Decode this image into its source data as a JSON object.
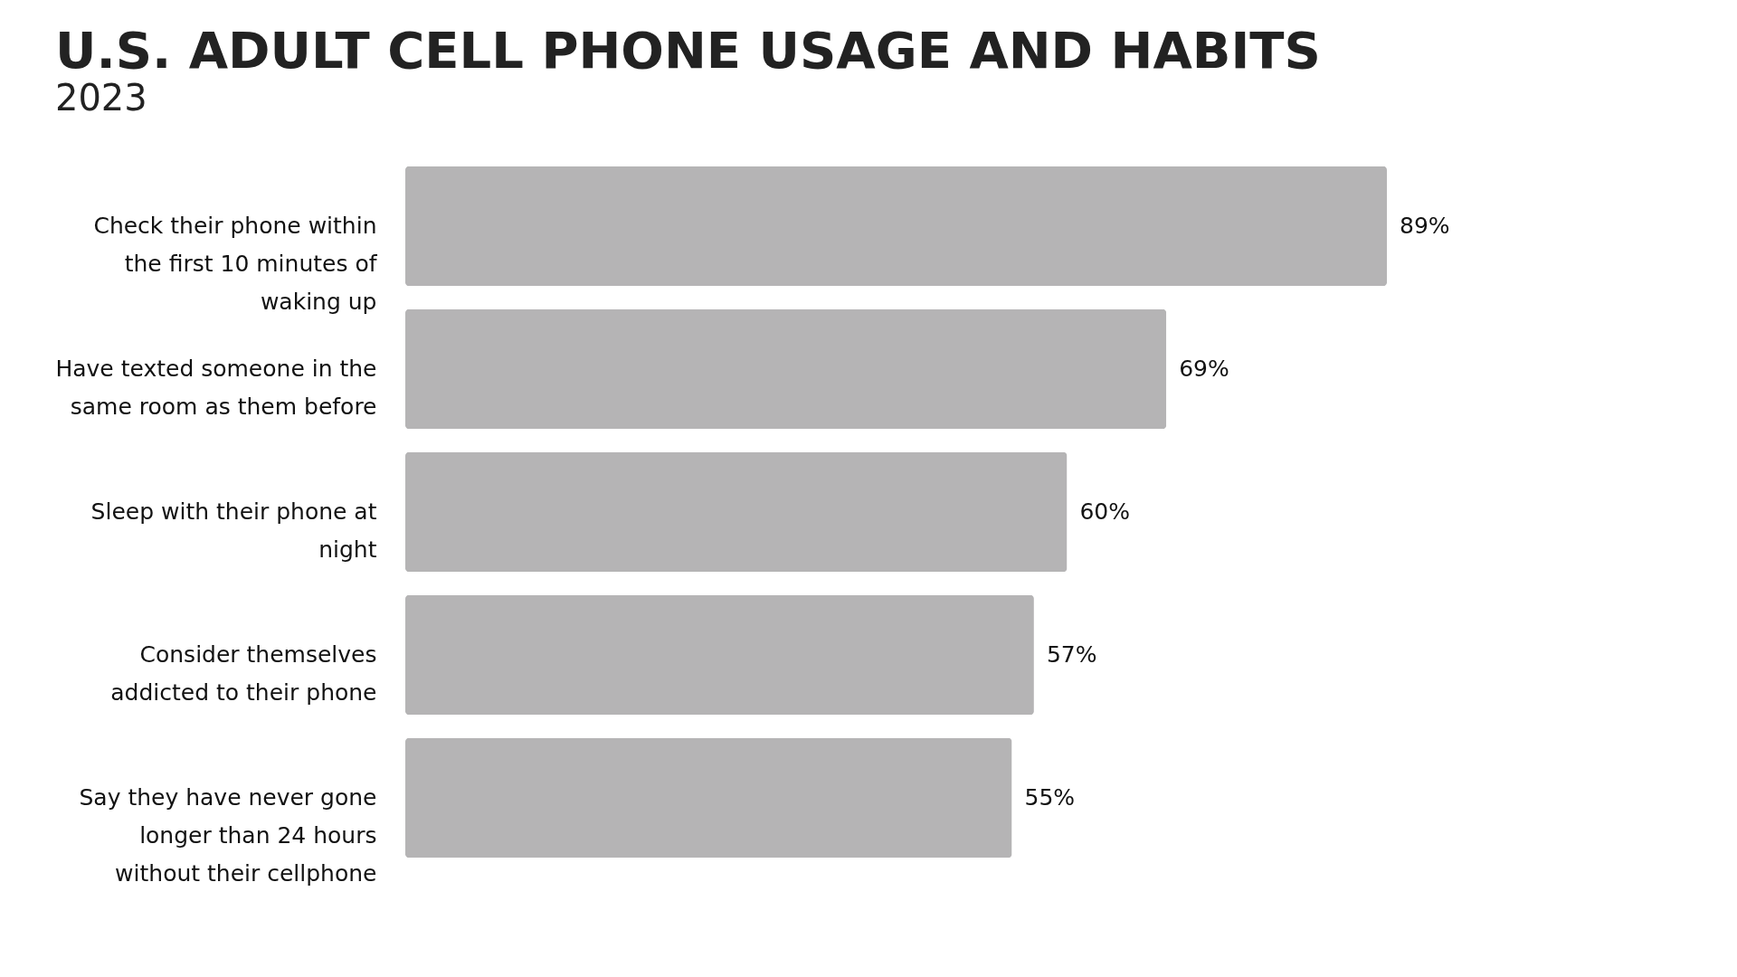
{
  "chart_data": {
    "type": "bar",
    "orientation": "horizontal",
    "title": "U.S. ADULT CELL PHONE USAGE AND HABITS",
    "subtitle": "2023",
    "categories": [
      "Check their phone within the first 10 minutes of waking up",
      "Have texted someone in the same room as them before",
      "Sleep with their phone at night",
      "Consider themselves addicted to their phone",
      "Say they have never gone longer than 24 hours without their cellphone"
    ],
    "values": [
      89,
      69,
      60,
      57,
      55
    ],
    "value_labels": [
      "89%",
      "69%",
      "60%",
      "57%",
      "55%"
    ],
    "color": "#b5b4b5",
    "grid": false
  }
}
